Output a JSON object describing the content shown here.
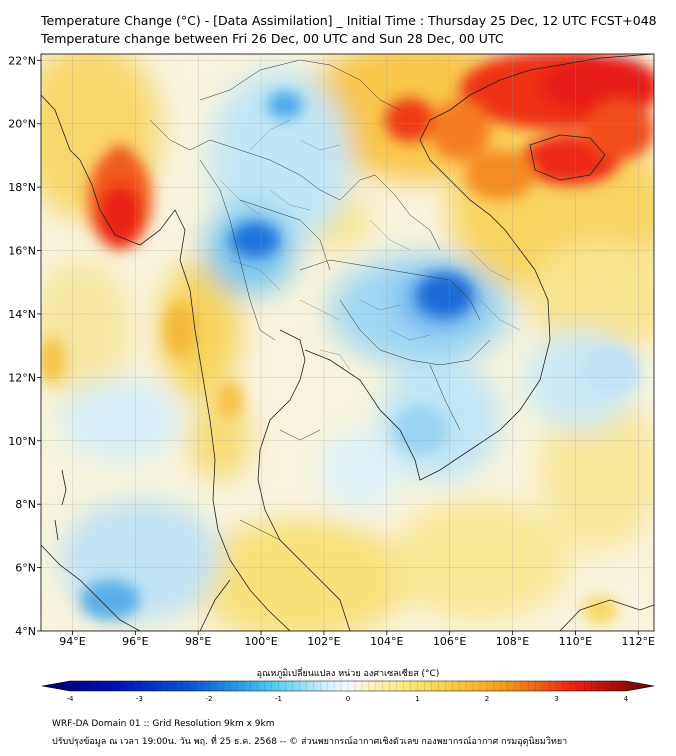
{
  "title_line1": "Temperature Change (°C) - [Data Assimilation] _ Initial Time : Thursday 25 Dec, 12 UTC FCST+048",
  "title_line2": "Temperature change between Fri 26 Dec, 00 UTC and Sun 28 Dec, 00 UTC",
  "x_ticks": [
    "94°E",
    "96°E",
    "98°E",
    "100°E",
    "102°E",
    "104°E",
    "106°E",
    "108°E",
    "110°E",
    "112°E"
  ],
  "y_ticks": [
    "22°N",
    "20°N",
    "18°N",
    "16°N",
    "14°N",
    "12°N",
    "10°N",
    "8°N",
    "6°N",
    "4°N"
  ],
  "colorbar_title": "อุณหภูมิเปลี่ยนแปลง หน่วย องศาเซลเซียส (°C)",
  "colorbar_ticks": [
    "-4",
    "-3",
    "-2",
    "-1",
    "0",
    "1",
    "2",
    "3",
    "4"
  ],
  "colorbar_colors": {
    "strong_cooling": "#000066",
    "cooling": "#0b5cd6",
    "mild_cooling": "#47c6f0",
    "neutral": "#f4f8fb",
    "mild_warming": "#f9e266",
    "warming": "#f5a21c",
    "strong_warming": "#ec2015",
    "extreme_warming": "#660000"
  },
  "footer_line1": "WRF-DA Domain 01 :: Grid Resolution 9km x 9km",
  "footer_line2": "ปรับปรุงข้อมูล ณ เวลา 19:00น. วัน พฤ. ที่ 25 ธ.ค. 2568 -- © ส่วนพยากรณ์อากาศเชิงตัวเลข กองพยากรณ์อากาศ กรมอุตุนิยมวิทยา"
}
